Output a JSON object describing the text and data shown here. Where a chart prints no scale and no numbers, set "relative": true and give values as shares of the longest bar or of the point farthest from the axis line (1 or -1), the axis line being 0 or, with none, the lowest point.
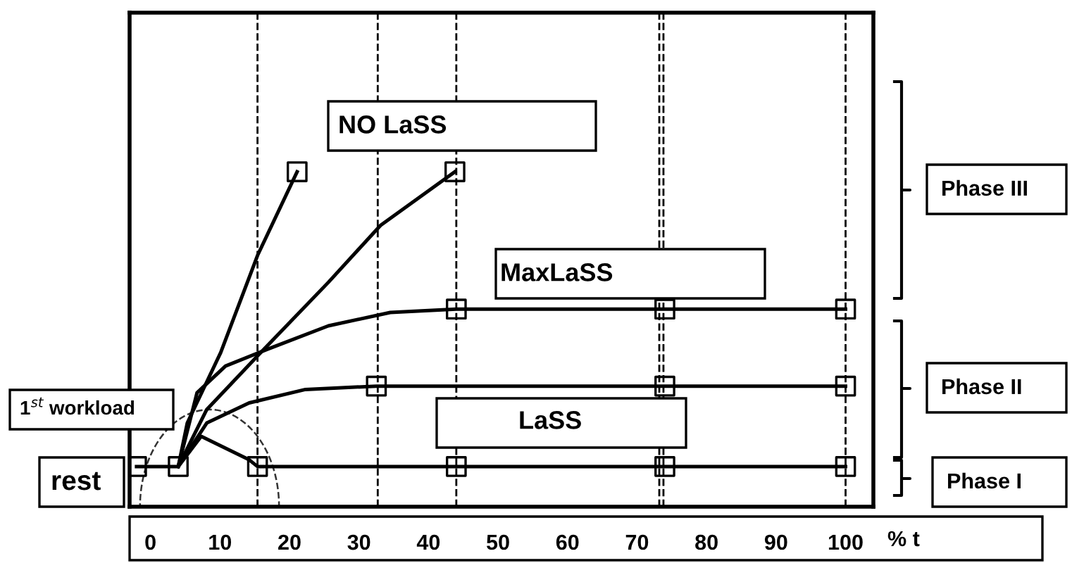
{
  "chart_data": {
    "type": "line",
    "relative": true,
    "xlabel": "% t",
    "xlim": [
      -3,
      104
    ],
    "xticks": [
      0,
      10,
      20,
      30,
      40,
      50,
      60,
      70,
      80,
      90,
      100
    ],
    "series": [
      {
        "type": "line",
        "color": "#000000",
        "x": [
          4,
          5.3,
          10.1,
          15.4,
          21.1
        ],
        "values": [
          0.12,
          0.25,
          0.46,
          0.75,
          1
        ]
      },
      {
        "type": "line",
        "color": "#000000",
        "x": [
          4,
          8.1,
          15.4,
          25.6,
          33.1,
          43.8
        ],
        "values": [
          0.12,
          0.29,
          0.45,
          0.67,
          0.84,
          1
        ]
      },
      {
        "type": "line",
        "color": "#000000",
        "x": [
          4,
          6.7,
          10.8,
          16.8,
          25.6,
          34.5,
          44,
          74,
          100
        ],
        "values": [
          0.12,
          0.34,
          0.42,
          0.47,
          0.54,
          0.58,
          0.59,
          0.59,
          0.59
        ]
      },
      {
        "type": "line",
        "color": "#000000",
        "x": [
          4,
          8.1,
          14.2,
          22.3,
          32.5,
          74,
          100
        ],
        "values": [
          0.12,
          0.25,
          0.31,
          0.35,
          0.36,
          0.36,
          0.36
        ]
      },
      {
        "type": "line",
        "color": "#000000",
        "x": [
          -2,
          4,
          7.3,
          14.2,
          15.4,
          44,
          74,
          100
        ],
        "values": [
          0.12,
          0.12,
          0.21,
          0.14,
          0.12,
          0.12,
          0.12,
          0.12
        ]
      },
      {
        "type": "scatter",
        "marker": "square",
        "color": "#000000",
        "x": [
          -2,
          4,
          15.4,
          21.1,
          43.8,
          44,
          74,
          100,
          32.5,
          74,
          100,
          44,
          74,
          100
        ],
        "values": [
          0.12,
          0.12,
          0.12,
          1,
          1,
          0.59,
          0.59,
          0.59,
          0.36,
          0.36,
          0.36,
          0.12,
          0.12,
          0.12
        ]
      }
    ],
    "ref_lines": [
      {
        "axis": "x",
        "value": 15.4,
        "color": "#000000",
        "line_style": "dashed"
      },
      {
        "axis": "x",
        "value": 32.7,
        "color": "#000000",
        "line_style": "dashed"
      },
      {
        "axis": "x",
        "value": 44,
        "color": "#000000",
        "line_style": "dashed"
      },
      {
        "axis": "x",
        "value": 73.2,
        "color": "#000000",
        "line_style": "dashed"
      },
      {
        "axis": "x",
        "value": 73.8,
        "color": "#000000",
        "line_style": "dashed"
      },
      {
        "axis": "x",
        "value": 100,
        "color": "#000000",
        "line_style": "dashed"
      }
    ],
    "annotations": [
      "NO LaSS",
      "MaxLaSS",
      "LaSS",
      "1$^{st}$ workload",
      "rest",
      "Phase III",
      "Phase II",
      "Phase I"
    ]
  }
}
